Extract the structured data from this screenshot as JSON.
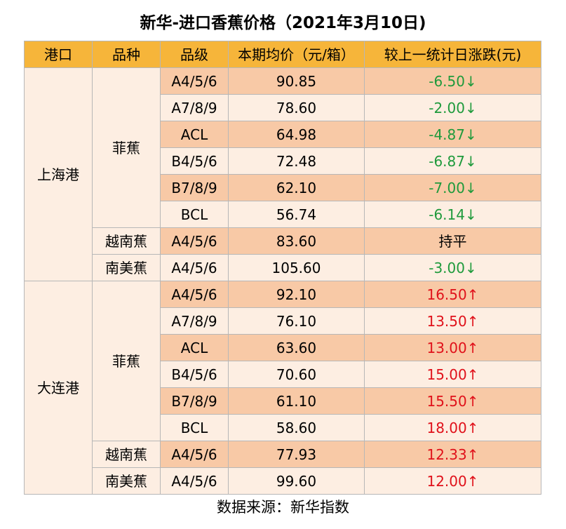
{
  "title": "新华-进口香蕉价格（2021年3月10日)",
  "headers": [
    "港口",
    "品种",
    "品级",
    "本期均价（元/箱）",
    "较上一统计日涨跌(元)"
  ],
  "colors": {
    "header_bg": "#f6b53a",
    "band_dark": "#f8c9a6",
    "band_light": "#fdeee2",
    "down": "#1f9a3c",
    "up": "#e0111a"
  },
  "rows": [
    {
      "grade": "A4/5/6",
      "price": "90.85",
      "change": "-6.50↓",
      "dir": "down"
    },
    {
      "grade": "A7/8/9",
      "price": "78.60",
      "change": "-2.00↓",
      "dir": "down"
    },
    {
      "grade": "ACL",
      "price": "64.98",
      "change": "-4.87↓",
      "dir": "down"
    },
    {
      "grade": "B4/5/6",
      "price": "72.48",
      "change": "-6.87↓",
      "dir": "down"
    },
    {
      "grade": "B7/8/9",
      "price": "62.10",
      "change": "-7.00↓",
      "dir": "down"
    },
    {
      "grade": "BCL",
      "price": "56.74",
      "change": "-6.14↓",
      "dir": "down"
    },
    {
      "grade": "A4/5/6",
      "price": "83.60",
      "change": "持平",
      "dir": "flat"
    },
    {
      "grade": "A4/5/6",
      "price": "105.60",
      "change": "-3.00↓",
      "dir": "down"
    },
    {
      "grade": "A4/5/6",
      "price": "92.10",
      "change": "16.50↑",
      "dir": "up"
    },
    {
      "grade": "A7/8/9",
      "price": "76.10",
      "change": "13.50↑",
      "dir": "up"
    },
    {
      "grade": "ACL",
      "price": "63.60",
      "change": "13.00↑",
      "dir": "up"
    },
    {
      "grade": "B4/5/6",
      "price": "70.60",
      "change": "15.00↑",
      "dir": "up"
    },
    {
      "grade": "B7/8/9",
      "price": "61.10",
      "change": "15.50↑",
      "dir": "up"
    },
    {
      "grade": "BCL",
      "price": "58.60",
      "change": "18.00↑",
      "dir": "up"
    },
    {
      "grade": "A4/5/6",
      "price": "77.93",
      "change": "12.33↑",
      "dir": "up"
    },
    {
      "grade": "A4/5/6",
      "price": "99.60",
      "change": "12.00↑",
      "dir": "up"
    }
  ],
  "ports": [
    {
      "name": "上海港",
      "varieties": [
        "菲蕉",
        "越南蕉",
        "南美蕉"
      ]
    },
    {
      "name": "大连港",
      "varieties": [
        "菲蕉",
        "越南蕉",
        "南美蕉"
      ]
    }
  ],
  "footer": "数据来源：新华指数"
}
